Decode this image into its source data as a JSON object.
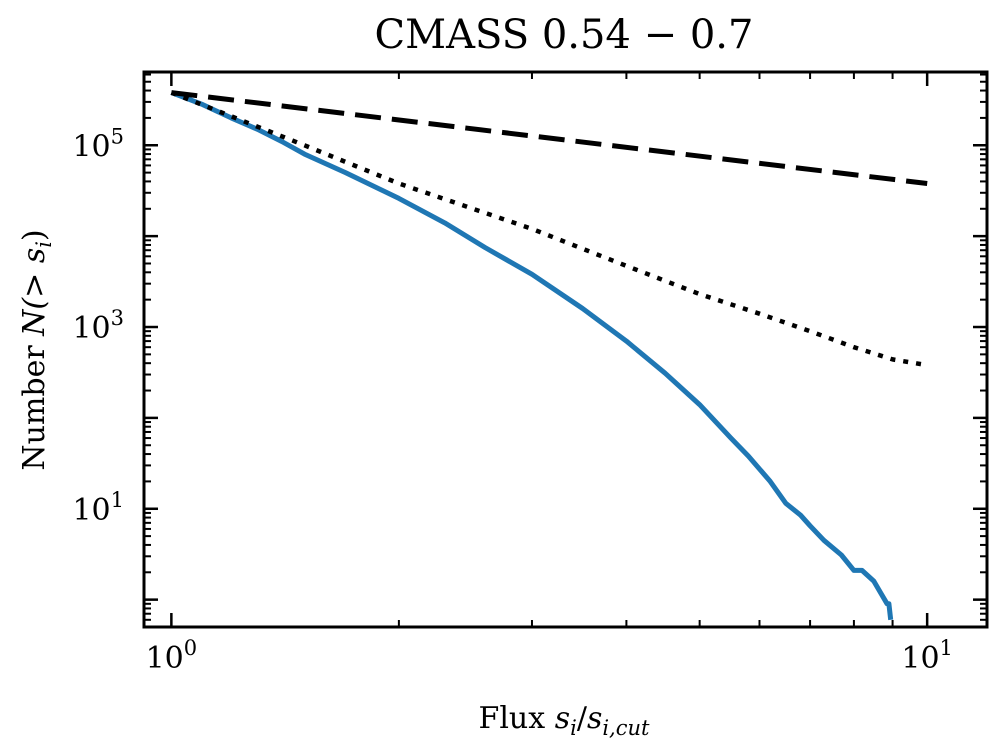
{
  "chart_data": {
    "type": "line",
    "title": "CMASS 0.54 − 0.7",
    "xlabel": {
      "prefix": "Flux ",
      "var": "s",
      "sub": "i",
      "sep": "/",
      "var2": "s",
      "sub2": "i,cut"
    },
    "ylabel": {
      "prefix": "Number ",
      "expr": "N(> s",
      "sub": "i",
      "suffix": ")"
    },
    "xscale": "log",
    "yscale": "log",
    "xlim": [
      0.92,
      12.0
    ],
    "ylim": [
      0.5,
      640000
    ],
    "x_major_ticks": [
      {
        "value": 1,
        "base": "10",
        "exp": "0"
      },
      {
        "value": 10,
        "base": "10",
        "exp": "1"
      }
    ],
    "y_major_ticks": [
      {
        "value": 10,
        "base": "10",
        "exp": "1"
      },
      {
        "value": 1000,
        "base": "10",
        "exp": "3"
      },
      {
        "value": 100000,
        "base": "10",
        "exp": "5"
      }
    ],
    "grid": false,
    "legend": "none",
    "series": [
      {
        "style": "solid",
        "color": "#1f77b4",
        "x": [
          1.0,
          1.1,
          1.2,
          1.3,
          1.4,
          1.5,
          1.7,
          2.0,
          2.3,
          2.6,
          3.0,
          3.5,
          4.0,
          4.5,
          5.0,
          5.5,
          5.8,
          6.2,
          6.5,
          6.8,
          7.0,
          7.3,
          7.7,
          8.0,
          8.2,
          8.5,
          8.7,
          8.85,
          8.9,
          8.95
        ],
        "y": [
          380000,
          280000,
          200000,
          150000,
          110000,
          80000,
          50000,
          26000,
          14000,
          7500,
          3800,
          1600,
          700,
          310,
          140,
          60,
          38,
          20,
          11.5,
          8.5,
          6.5,
          4.5,
          3.1,
          2.1,
          2.1,
          1.6,
          1.15,
          0.9,
          0.9,
          0.6
        ]
      },
      {
        "style": "dashed",
        "color": "#000000",
        "x": [
          1.0,
          10.0
        ],
        "y": [
          380000,
          38000
        ]
      },
      {
        "style": "dotted",
        "color": "#000000",
        "x": [
          1.0,
          1.5,
          2.0,
          3.0,
          4.0,
          5.0,
          6.0,
          7.0,
          8.0,
          9.0,
          10.0
        ],
        "y": [
          380000,
          100000,
          38000,
          12000,
          4700,
          2300,
          1400,
          900,
          600,
          440,
          380
        ]
      }
    ]
  }
}
